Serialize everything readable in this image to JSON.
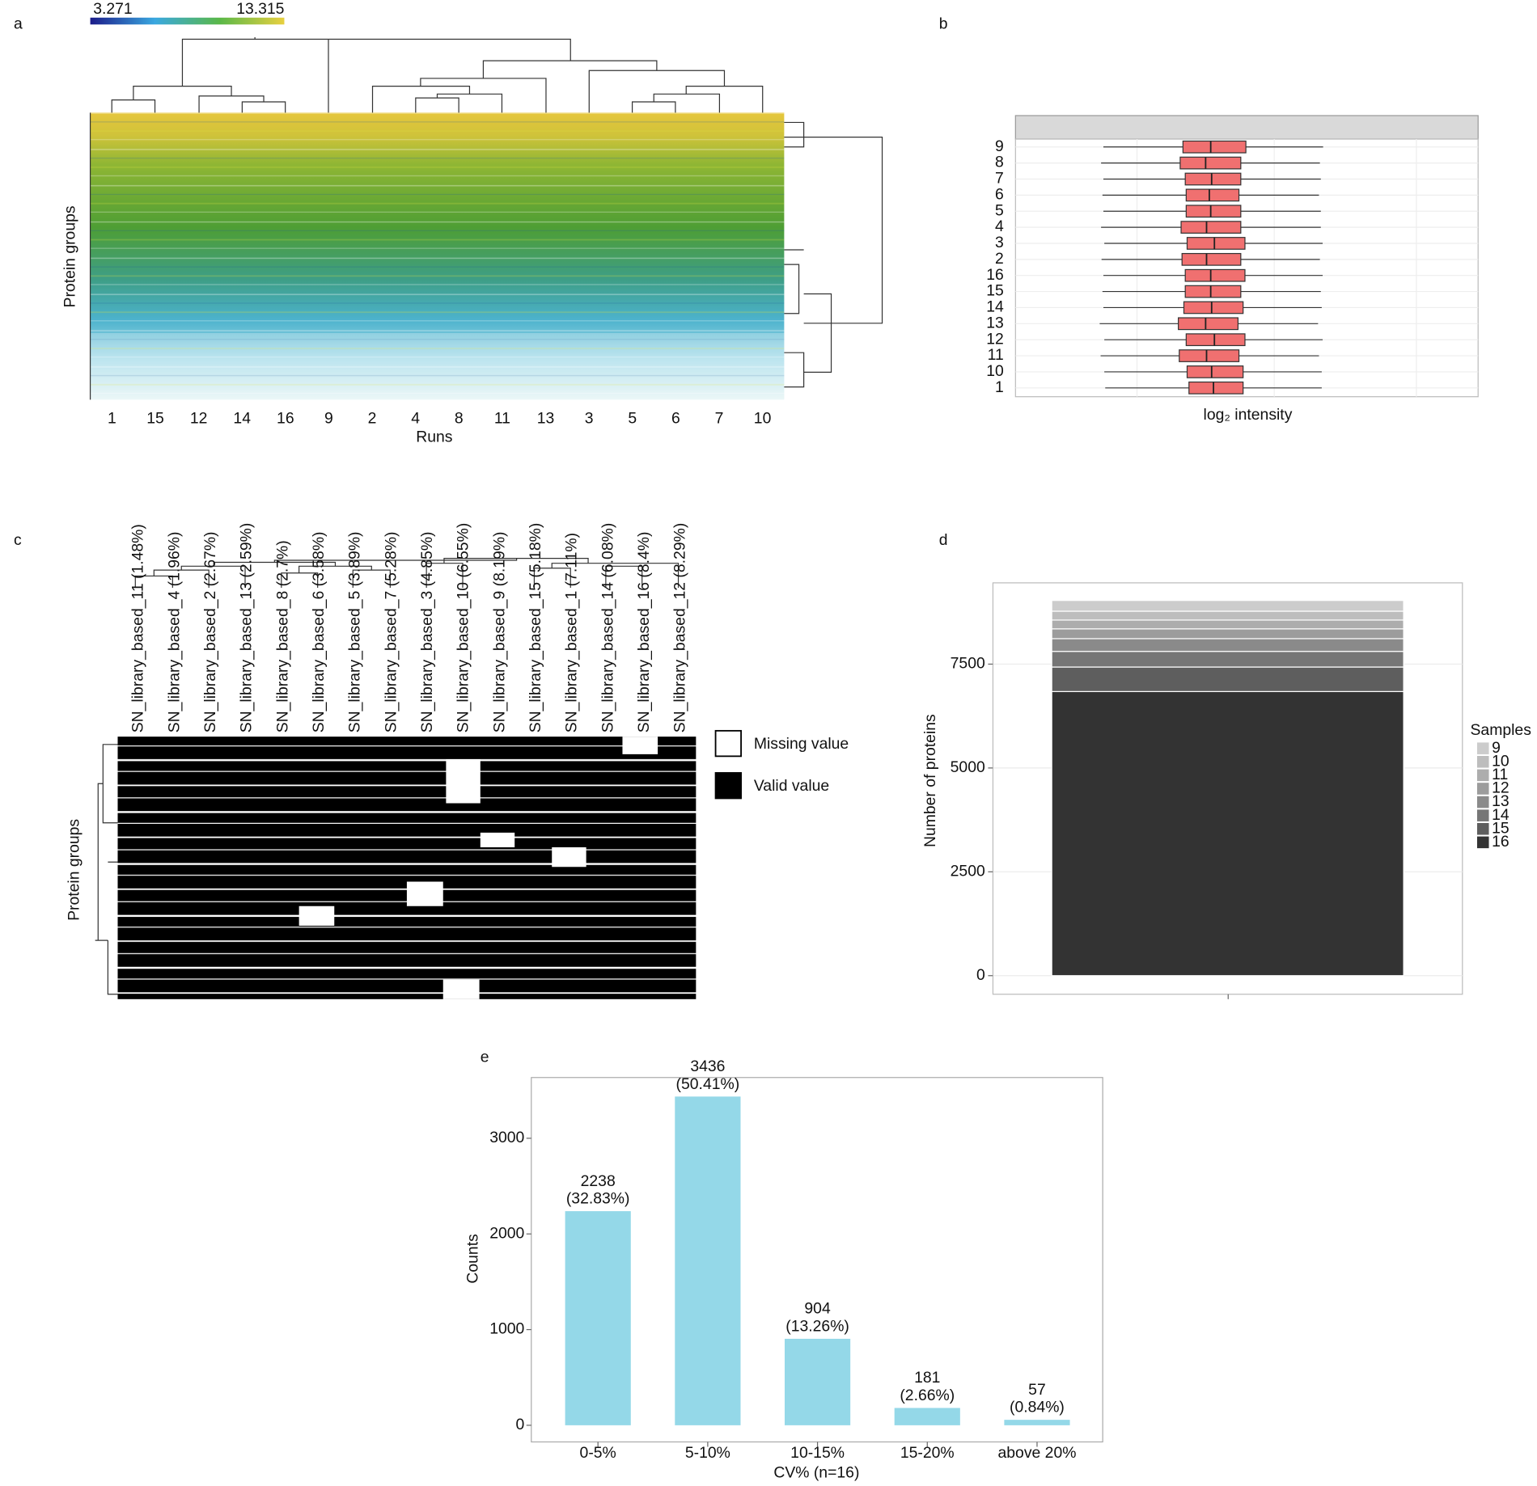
{
  "chart_data": [
    {
      "type": "heatmap",
      "panel": "a",
      "categories": [
        "1",
        "15",
        "12",
        "14",
        "16",
        "9",
        "2",
        "4",
        "8",
        "11",
        "13",
        "3",
        "5",
        "6",
        "7",
        "10"
      ],
      "x_label": "Runs",
      "y_label": "Protein groups",
      "colorbar": {
        "min": 3.271,
        "max": 13.315
      },
      "colors": [
        "#1c1c8a",
        "#3aa8e0",
        "#5ab848",
        "#e8d040"
      ]
    },
    {
      "type": "box",
      "panel": "b",
      "categories": [
        "9",
        "8",
        "7",
        "6",
        "5",
        "4",
        "3",
        "2",
        "16",
        "15",
        "14",
        "13",
        "12",
        "11",
        "10",
        "1"
      ],
      "x_label": "log₂ intensity",
      "xlim": [
        0,
        100
      ],
      "color": "#f07070",
      "whislo": [
        19,
        18.5,
        19,
        18.8,
        19,
        18.5,
        19.2,
        18.6,
        19,
        18.8,
        19,
        18.2,
        19.2,
        18.4,
        19.2,
        19.4
      ],
      "q1": [
        36.2,
        35.6,
        36.7,
        36.9,
        36.9,
        35.8,
        37.1,
        36.0,
        36.7,
        36.7,
        36.4,
        35.2,
        36.9,
        35.4,
        37.1,
        37.5
      ],
      "median": [
        42.2,
        41.1,
        42.4,
        41.9,
        42.2,
        41.3,
        43.0,
        41.3,
        42.2,
        42.2,
        42.4,
        41.1,
        43.0,
        41.3,
        42.4,
        42.8
      ],
      "q3": [
        49.8,
        48.7,
        48.7,
        48.3,
        48.7,
        48.7,
        49.6,
        48.7,
        49.6,
        48.7,
        49.2,
        48.1,
        49.6,
        48.3,
        49.2,
        49.2
      ],
      "whishi": [
        66.5,
        65.8,
        66,
        65.6,
        66,
        66,
        66.4,
        65.8,
        66.4,
        66,
        66.2,
        65.4,
        66.4,
        65.6,
        66.2,
        66.2
      ]
    },
    {
      "type": "heatmap",
      "panel": "c",
      "categories": [
        "SN_library_based_11 (1.48%)",
        "SN_library_based_4 (1.96%)",
        "SN_library_based_2 (2.67%)",
        "SN_library_based_13 (2.59%)",
        "SN_library_based_8 (2.7%)",
        "SN_library_based_6 (3.58%)",
        "SN_library_based_5 (3.89%)",
        "SN_library_based_7 (5.28%)",
        "SN_library_based_3 (4.85%)",
        "SN_library_based_10 (6.55%)",
        "SN_library_based_9 (8.19%)",
        "SN_library_based_15 (5.18%)",
        "SN_library_based_1 (7.11%)",
        "SN_library_based_14 (6.08%)",
        "SN_library_based_16 (8.4%)",
        "SN_library_based_12 (8.29%)"
      ],
      "y_label": "Protein groups",
      "legend": [
        {
          "name": "Missing value",
          "color": "#ffffff"
        },
        {
          "name": "Valid value",
          "color": "#000000"
        }
      ]
    },
    {
      "type": "stacked_bar",
      "panel": "d",
      "y_label": "Number of proteins",
      "legend_title": "Samples",
      "ylim": [
        -448,
        9457
      ],
      "yticks": [
        0,
        2500,
        5000,
        7500
      ],
      "grid": true,
      "series": [
        {
          "name": "9",
          "color": "#cccccc",
          "values": [
            259
          ]
        },
        {
          "name": "10",
          "color": "#bdbdbd",
          "values": [
            213
          ]
        },
        {
          "name": "11",
          "color": "#adadad",
          "values": [
            212
          ]
        },
        {
          "name": "12",
          "color": "#9c9c9c",
          "values": [
            236
          ]
        },
        {
          "name": "13",
          "color": "#8a8a8a",
          "values": [
            306
          ]
        },
        {
          "name": "14",
          "color": "#767676",
          "values": [
            377
          ]
        },
        {
          "name": "15",
          "color": "#5e5e5e",
          "values": [
            590
          ]
        },
        {
          "name": "16",
          "color": "#333333",
          "values": [
            6840
          ]
        }
      ]
    },
    {
      "type": "bar",
      "panel": "e",
      "categories": [
        "0-5%",
        "5-10%",
        "10-15%",
        "15-20%",
        "above 20%"
      ],
      "values": [
        2238,
        3436,
        904,
        181,
        57
      ],
      "percent_labels": [
        "(32.83%)",
        "(50.41%)",
        "(13.26%)",
        "(2.66%)",
        "(0.84%)"
      ],
      "x_label": "CV% (n=16)",
      "y_label": "Counts",
      "ylim": [
        -174,
        3635
      ],
      "yticks": [
        0,
        1000,
        2000,
        3000
      ],
      "color": "#94d8e8"
    }
  ]
}
